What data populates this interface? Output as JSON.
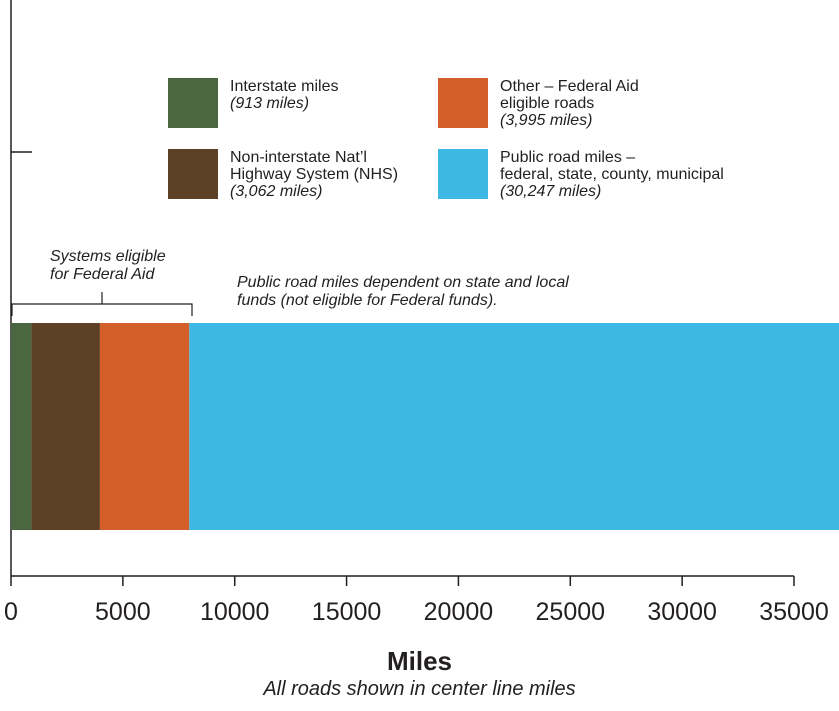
{
  "chart_data": {
    "type": "bar",
    "orientation": "horizontal-stacked",
    "xlabel": "Miles",
    "note": "All roads shown in center line miles",
    "xlim": [
      0,
      35000
    ],
    "xticks": [
      0,
      5000,
      10000,
      15000,
      20000,
      25000,
      30000,
      35000
    ],
    "segments": [
      {
        "key": "interstate",
        "value": 913,
        "color": "#4a6741",
        "label": "Interstate miles",
        "sublabel": "(913 miles)"
      },
      {
        "key": "nhs",
        "value": 3062,
        "color": "#5e4027",
        "label": "Non-interstate Nat’l\nHighway System (NHS)",
        "sublabel": "(3,062 miles)"
      },
      {
        "key": "federal_aid",
        "value": 3995,
        "color": "#d35e28",
        "label": "Other – Federal Aid\neligible roads",
        "sublabel": "(3,995 miles)"
      },
      {
        "key": "public_road",
        "value": 30247,
        "color": "#3db8e5",
        "label": "Public road miles –\nfederal, state, county, municipal",
        "sublabel": "(30,247 miles)"
      }
    ],
    "annotations": {
      "bracket_label": "Systems eligible\nfor Federal Aid",
      "dependent_label": "Public road miles dependent on state and local\nfunds (not eligible for Federal funds)."
    }
  }
}
